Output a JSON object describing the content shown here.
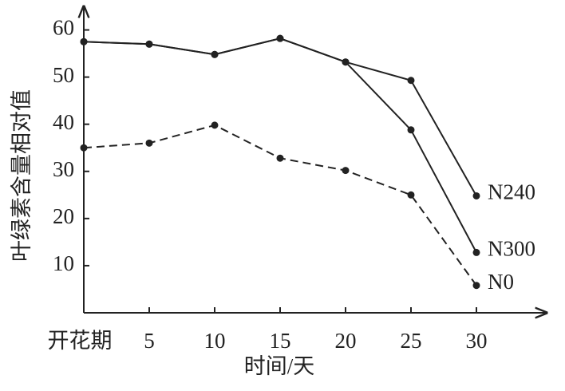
{
  "chart_data": {
    "type": "line",
    "x_label": "时间/天",
    "y_label": "叶绿素含量相对值",
    "categories": [
      "开花期",
      "5",
      "10",
      "15",
      "20",
      "25",
      "30"
    ],
    "series": [
      {
        "name": "N240",
        "color": "#222222",
        "dashed": false,
        "values": [
          57.5,
          57,
          54.8,
          58.2,
          53.2,
          49.3,
          24.8
        ]
      },
      {
        "name": "N300",
        "color": "#222222",
        "dashed": false,
        "values": [
          57.5,
          57,
          54.8,
          58.2,
          53.2,
          38.8,
          12.8
        ]
      },
      {
        "name": "N0",
        "color": "#222222",
        "dashed": true,
        "values": [
          35,
          36,
          39.8,
          32.8,
          30.2,
          25,
          5.8
        ]
      }
    ],
    "ylim": [
      0,
      65
    ],
    "yticks": [
      10,
      20,
      30,
      40,
      50,
      60
    ],
    "grid": false
  }
}
